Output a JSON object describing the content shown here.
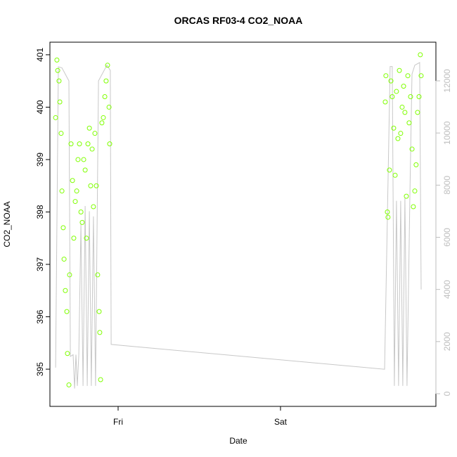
{
  "chart_data": {
    "type": "scatter",
    "title": "ORCAS RF03-4 CO2_NOAA",
    "x_label": "Date",
    "y_label": "CO2_NOAA",
    "xlim": [
      -0.42,
      1.957
    ],
    "xticks": [
      {
        "value": 0,
        "label": "Fri"
      },
      {
        "value": 1,
        "label": "Sat"
      }
    ],
    "ylim": [
      394.29,
      401.24
    ],
    "yticks": [
      395,
      396,
      397,
      398,
      399,
      400,
      401
    ],
    "y2lim": [
      -485,
      13483
    ],
    "y2ticks": [
      0,
      2000,
      4000,
      6000,
      8000,
      10000,
      12000
    ],
    "y2_color": "#bebebe",
    "series": [
      {
        "type": "scatter",
        "color": "#7fff00",
        "x": [
          -0.385,
          -0.377,
          -0.372,
          -0.364,
          -0.359,
          -0.351,
          -0.346,
          -0.338,
          -0.333,
          -0.325,
          -0.316,
          -0.312,
          -0.303,
          -0.299,
          -0.29,
          -0.281,
          -0.273,
          -0.264,
          -0.255,
          -0.247,
          -0.238,
          -0.229,
          -0.221,
          -0.212,
          -0.203,
          -0.195,
          -0.186,
          -0.177,
          -0.169,
          -0.16,
          -0.152,
          -0.143,
          -0.134,
          -0.126,
          -0.117,
          -0.113,
          -0.108,
          -0.1,
          -0.091,
          -0.082,
          -0.074,
          -0.065,
          -0.056,
          -0.052,
          1.645,
          1.649,
          1.658,
          1.662,
          1.671,
          1.68,
          1.688,
          1.697,
          1.706,
          1.714,
          1.723,
          1.732,
          1.74,
          1.749,
          1.758,
          1.766,
          1.775,
          1.784,
          1.792,
          1.801,
          1.81,
          1.818,
          1.827,
          1.835,
          1.844,
          1.853,
          1.861,
          1.866
        ],
        "values": [
          399.8,
          400.9,
          400.7,
          400.5,
          400.1,
          399.5,
          398.4,
          397.7,
          397.1,
          396.5,
          396.1,
          395.3,
          394.7,
          396.8,
          399.3,
          398.6,
          397.5,
          398.2,
          398.4,
          399.0,
          399.3,
          398.0,
          397.8,
          399.0,
          398.8,
          397.5,
          399.3,
          399.6,
          398.5,
          399.2,
          398.1,
          399.5,
          398.5,
          396.8,
          396.1,
          395.7,
          394.8,
          399.7,
          399.8,
          400.2,
          400.5,
          400.8,
          400.0,
          399.3,
          400.1,
          400.6,
          398.0,
          397.9,
          398.8,
          400.5,
          400.2,
          399.6,
          398.7,
          400.3,
          399.4,
          400.7,
          399.5,
          400.0,
          400.4,
          399.9,
          398.3,
          400.6,
          399.7,
          400.2,
          399.2,
          398.1,
          398.4,
          398.9,
          399.9,
          400.2,
          401.0,
          400.6
        ]
      },
      {
        "type": "line",
        "axis": "y2",
        "color": "#c8c8c8",
        "x": [
          -0.385,
          -0.368,
          -0.346,
          -0.303,
          -0.294,
          -0.277,
          -0.268,
          -0.26,
          -0.251,
          -0.242,
          -0.229,
          -0.216,
          -0.203,
          -0.19,
          -0.177,
          -0.165,
          -0.152,
          -0.139,
          -0.121,
          -0.069,
          -0.048,
          -0.043,
          1.641,
          1.675,
          1.688,
          1.701,
          1.714,
          1.727,
          1.74,
          1.753,
          1.766,
          1.779,
          1.797,
          1.81,
          1.827,
          1.857,
          1.866
        ],
        "values": [
          1000,
          12540,
          12500,
          12000,
          1430,
          1500,
          200,
          1500,
          300,
          1500,
          6500,
          300,
          7200,
          300,
          7000,
          300,
          6800,
          300,
          12000,
          12600,
          12400,
          1890,
          940,
          12550,
          12550,
          300,
          7400,
          300,
          7400,
          300,
          7500,
          300,
          7600,
          12260,
          12600,
          12700,
          4000
        ]
      }
    ]
  }
}
